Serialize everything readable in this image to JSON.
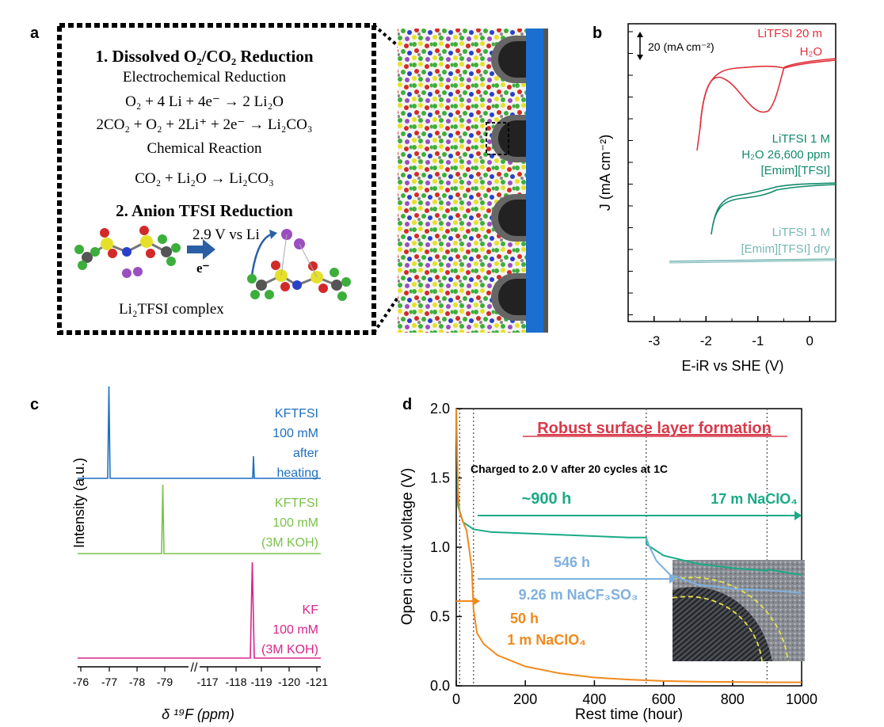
{
  "panel_labels": {
    "a": "a",
    "b": "b",
    "c": "c",
    "d": "d"
  },
  "panel_a": {
    "lines": [
      "1. Dissolved O₂/CO₂ Reduction",
      "Electrochemical Reduction",
      "O₂ + 4 Li + 4e⁻ → 2 Li₂O",
      "2CO₂ + O₂ + 2Li⁺ + 2e⁻ → Li₂CO₃",
      "Chemical  Reaction",
      "CO₂ + Li₂O → Li₂CO₃",
      "2. Anion TFSI Reduction"
    ],
    "arrow_label": "2.9 V vs Li",
    "electron_label": "e⁻",
    "complex_label": "Li₂TFSI complex"
  },
  "chart_data": [
    {
      "panel": "b",
      "type": "line",
      "xlabel": "E-iR vs SHE (V)",
      "ylabel": "J (mA cm⁻²)",
      "xlim": [
        -3.5,
        0.5
      ],
      "x_ticks": [
        "-3",
        "-2",
        "-1",
        "0"
      ],
      "scale_bar_label": "20 (mA cm⁻²)",
      "series": [
        {
          "name": "LiTFSI 20 m H₂O",
          "label_lines": [
            "LiTFSI 20 m",
            "H₂O"
          ],
          "color": "#e0303c"
        },
        {
          "name": "LiTFSI 1 M H₂O 26,600 ppm [Emim][TFSI]",
          "label_lines": [
            "LiTFSI 1 M",
            "H₂O 26,600 ppm",
            "[Emim][TFSI]"
          ],
          "color": "#128a6c"
        },
        {
          "name": "LiTFSI 1 M [Emim][TFSI] dry",
          "label_lines": [
            "LiTFSI 1 M",
            "[Emim][TFSI] dry"
          ],
          "color": "#78b6b4"
        }
      ]
    },
    {
      "panel": "c",
      "type": "line",
      "xlabel": "δ ¹⁹F (ppm)",
      "ylabel": "Intensity (a.u.)",
      "x_ticks": [
        "-76",
        "-77",
        "-78",
        "-79",
        "-117",
        "-118",
        "-119",
        "-120",
        "-121"
      ],
      "series": [
        {
          "name": "KFTFSI 100 mM after heating",
          "label_lines": [
            "KFTFSI",
            "100 mM",
            "after",
            "heating"
          ],
          "color": "#1f6fc0",
          "peaks_ppm": [
            -77.0,
            -118.8
          ]
        },
        {
          "name": "KFTFSI 100 mM (3M KOH)",
          "label_lines": [
            "KFTFSI",
            "100 mM",
            "(3M KOH)"
          ],
          "color": "#7bc24a",
          "peaks_ppm": [
            -78.9
          ]
        },
        {
          "name": "KF 100 mM (3M KOH)",
          "label_lines": [
            "KF",
            "100 mM",
            "(3M KOH)"
          ],
          "color": "#d9268a",
          "peaks_ppm": [
            -118.7
          ]
        }
      ]
    },
    {
      "panel": "d",
      "type": "line",
      "title": "Robust surface layer formation",
      "xlabel": "Rest time (hour)",
      "ylabel": "Open circuit voltage (V)",
      "xlim": [
        0,
        1000
      ],
      "ylim": [
        0,
        2.0
      ],
      "x_ticks": [
        0,
        200,
        400,
        600,
        800,
        1000
      ],
      "y_ticks": [
        "0.0",
        "0.5",
        "1.0",
        "1.5",
        "2.0"
      ],
      "annotation": "Charged to 2.0 V after 20 cycles at 1C",
      "vlines": [
        10,
        50,
        550,
        900
      ],
      "series": [
        {
          "name": "17 m NaClO₄",
          "duration_label": "~900 h",
          "color": "#1aaa86",
          "x": [
            0,
            5,
            20,
            50,
            100,
            200,
            300,
            400,
            500,
            550,
            551,
            600,
            700,
            800,
            900,
            901,
            950,
            1000
          ],
          "y": [
            2.0,
            1.3,
            1.18,
            1.13,
            1.11,
            1.1,
            1.09,
            1.08,
            1.07,
            1.07,
            1.02,
            0.94,
            0.88,
            0.85,
            0.83,
            0.84,
            0.82,
            0.8
          ]
        },
        {
          "name": "9.26 m NaCF₃SO₃",
          "duration_label": "546 h",
          "color": "#7fb0df",
          "x": [
            550,
            560,
            580,
            620,
            700,
            800,
            900,
            1000
          ],
          "y": [
            1.07,
            1.0,
            0.9,
            0.8,
            0.73,
            0.7,
            0.69,
            0.67
          ]
        },
        {
          "name": "1 m NaClO₄",
          "duration_label": "50 h",
          "color": "#f08a1c",
          "x": [
            0,
            5,
            10,
            20,
            30,
            45,
            50,
            60,
            80,
            120,
            200,
            300,
            400,
            500,
            600,
            700,
            800,
            900,
            1000
          ],
          "y": [
            2.0,
            1.4,
            1.25,
            1.18,
            1.12,
            0.85,
            0.55,
            0.38,
            0.3,
            0.22,
            0.14,
            0.09,
            0.06,
            0.045,
            0.035,
            0.03,
            0.028,
            0.026,
            0.025
          ]
        }
      ]
    }
  ]
}
